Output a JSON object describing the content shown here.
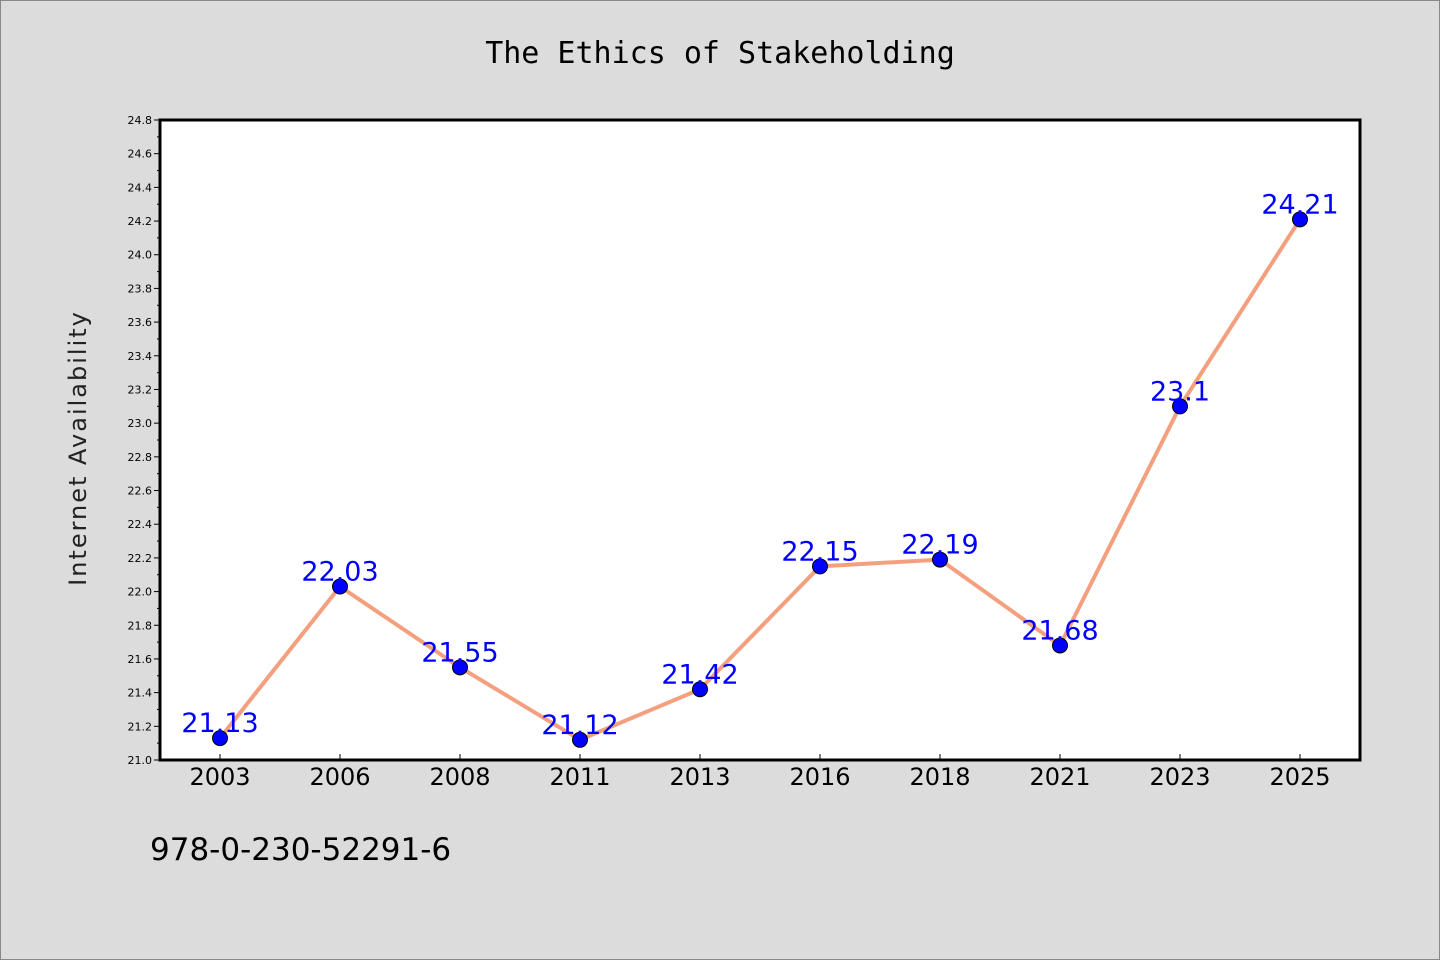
{
  "chart_data": {
    "type": "line",
    "title": "The Ethics of Stakeholding",
    "xlabel": "",
    "ylabel": "Internet Availability",
    "categories": [
      "2003",
      "2006",
      "2008",
      "2011",
      "2013",
      "2016",
      "2018",
      "2021",
      "2023",
      "2025"
    ],
    "series": [
      {
        "values": [
          21.13,
          22.03,
          21.55,
          21.12,
          21.42,
          22.15,
          22.19,
          21.68,
          23.1,
          24.21
        ],
        "value_labels": [
          "21.13",
          "22.03",
          "21.55",
          "21.12",
          "21.42",
          "22.15",
          "22.19",
          "21.68",
          "23.1",
          "24.21"
        ]
      }
    ],
    "ylim": [
      21.0,
      24.8
    ],
    "yticks": [
      "21.0",
      "21.2",
      "21.4",
      "21.6",
      "21.8",
      "22.0",
      "22.2",
      "22.4",
      "22.6",
      "22.8",
      "23.0",
      "23.2",
      "23.4",
      "23.6",
      "23.8",
      "24.0",
      "24.2",
      "24.4",
      "24.6",
      "24.8"
    ],
    "grid": false,
    "colors": {
      "line": "#f4a07f",
      "marker": "#0000ff",
      "label": "#0000ff",
      "background": "#dcdcdc",
      "plot_background": "#ffffff"
    }
  },
  "footer": {
    "isbn": "978-0-230-52291-6"
  }
}
